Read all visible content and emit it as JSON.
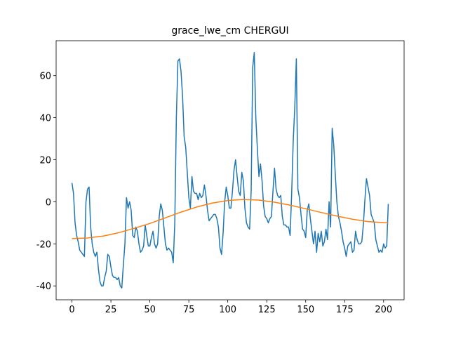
{
  "chart_data": {
    "type": "line",
    "title": "grace_lwe_cm CHERGUI",
    "xlim": [
      -10.15,
      213.15
    ],
    "ylim": [
      -46.6,
      76.6
    ],
    "xticks": [
      0,
      25,
      50,
      75,
      100,
      125,
      150,
      175,
      200
    ],
    "yticks": [
      -40,
      -20,
      0,
      20,
      40,
      60
    ],
    "grid": false,
    "series": [
      {
        "color": "#1f77b4",
        "x": [
          0,
          1,
          2,
          3,
          4,
          5,
          6,
          7,
          8,
          9,
          10,
          11,
          12,
          13,
          14,
          15,
          16,
          17,
          18,
          19,
          20,
          21,
          22,
          23,
          24,
          25,
          26,
          27,
          28,
          29,
          30,
          31,
          32,
          33,
          34,
          35,
          36,
          37,
          38,
          39,
          40,
          41,
          42,
          43,
          44,
          45,
          46,
          47,
          48,
          49,
          50,
          51,
          52,
          53,
          54,
          55,
          56,
          57,
          58,
          59,
          60,
          61,
          62,
          63,
          64,
          65,
          66,
          67,
          68,
          69,
          70,
          71,
          72,
          73,
          74,
          75,
          76,
          77,
          78,
          79,
          80,
          81,
          82,
          83,
          84,
          85,
          86,
          87,
          88,
          89,
          90,
          91,
          92,
          93,
          94,
          95,
          96,
          97,
          98,
          99,
          100,
          101,
          102,
          103,
          104,
          105,
          106,
          107,
          108,
          109,
          110,
          111,
          112,
          113,
          114,
          115,
          116,
          117,
          118,
          119,
          120,
          121,
          122,
          123,
          124,
          125,
          126,
          127,
          128,
          129,
          130,
          131,
          132,
          133,
          134,
          135,
          136,
          137,
          138,
          139,
          140,
          141,
          142,
          143,
          144,
          145,
          146,
          147,
          148,
          149,
          150,
          151,
          152,
          153,
          154,
          155,
          156,
          157,
          158,
          159,
          160,
          161,
          162,
          163,
          164,
          165,
          166,
          167,
          168,
          169,
          170,
          171,
          172,
          173,
          174,
          175,
          176,
          177,
          178,
          179,
          180,
          181,
          182,
          183,
          184,
          185,
          186,
          187,
          188,
          189,
          190,
          191,
          192,
          193,
          194,
          195,
          196,
          197,
          198,
          199,
          200,
          201,
          202,
          203
        ],
        "values": [
          9,
          4,
          -10,
          -16,
          -19,
          -23,
          -24,
          -25,
          -26,
          0,
          6,
          7,
          -12,
          -20,
          -24,
          -26,
          -24,
          -32,
          -38,
          -40,
          -40,
          -36,
          -33,
          -25,
          -26,
          -31,
          -35,
          -36,
          -36,
          -37,
          -36,
          -40,
          -41,
          -30,
          -20,
          2,
          -3,
          0,
          -4,
          -16,
          -17,
          -12,
          -14,
          -20,
          -24,
          -23,
          -21,
          -11,
          -16,
          -21,
          -21,
          -17,
          -14,
          -20,
          -22,
          -20,
          -7,
          -1,
          -4,
          -12,
          -20,
          -23,
          -22,
          -23,
          -24,
          -29,
          -10,
          40,
          67,
          68,
          62,
          50,
          31,
          26,
          14,
          2,
          -3,
          12,
          5,
          4,
          4,
          1,
          4,
          2,
          3,
          8,
          3,
          -4,
          -9,
          -8,
          -7,
          -6,
          -6,
          -8,
          -12,
          -22,
          -25,
          -15,
          0,
          7,
          3,
          -3,
          -3,
          5,
          15,
          20,
          12,
          5,
          3,
          14,
          10,
          -3,
          -10,
          -12,
          -13,
          5,
          64,
          71,
          40,
          25,
          12,
          18,
          10,
          -2,
          -7,
          -8,
          -10,
          -8,
          -7,
          5,
          16,
          6,
          3,
          2,
          3,
          -7,
          -11,
          -11,
          -12,
          -12,
          -16,
          4,
          29,
          45,
          68,
          6,
          2,
          -6,
          -13,
          -14,
          -17,
          -4,
          -1,
          -8,
          -14,
          -20,
          -14,
          -24,
          -15,
          -19,
          -14,
          -21,
          -19,
          -13,
          -18,
          0,
          -12,
          35,
          27,
          13,
          0,
          -7,
          -10,
          -14,
          -19,
          -22,
          -26,
          -21,
          -20,
          -19,
          -24,
          -23,
          -14,
          -18,
          -20,
          -20,
          -19,
          -11,
          1,
          11,
          7,
          3,
          -6,
          -8,
          -10,
          -18,
          -21,
          -24,
          -23,
          -24,
          -20,
          -22,
          -21,
          -1
        ]
      },
      {
        "color": "#ff7f0e",
        "x": [
          0,
          10,
          20,
          30,
          40,
          50,
          60,
          70,
          80,
          90,
          100,
          110,
          120,
          130,
          140,
          150,
          160,
          170,
          180,
          190,
          200,
          203
        ],
        "values": [
          -17.5,
          -17.2,
          -16.3,
          -14.7,
          -12.6,
          -10.3,
          -7.6,
          -4.9,
          -2.5,
          -0.6,
          0.6,
          1.1,
          0.8,
          -0.2,
          -1.6,
          -3.3,
          -5.1,
          -6.8,
          -8.3,
          -9.4,
          -9.9,
          -10
        ]
      }
    ]
  }
}
